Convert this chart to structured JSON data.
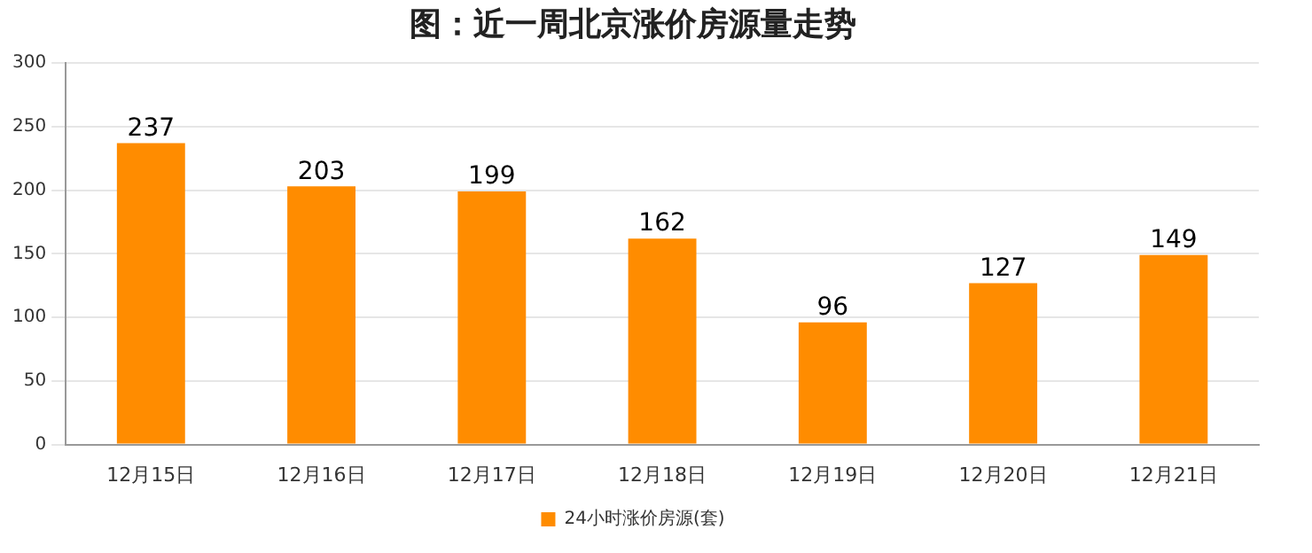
{
  "chart_data": {
    "type": "bar",
    "title": "图：近一周北京涨价房源量走势",
    "categories": [
      "12月15日",
      "12月16日",
      "12月17日",
      "12月18日",
      "12月19日",
      "12月20日",
      "12月21日"
    ],
    "series": [
      {
        "name": "24小时涨价房源(套)",
        "color": "#ff8c00",
        "values": [
          237,
          203,
          199,
          162,
          96,
          127,
          149
        ]
      }
    ],
    "ylim": [
      0,
      300
    ],
    "yticks": [
      0,
      50,
      100,
      150,
      200,
      250,
      300
    ],
    "grid": "y",
    "legend": "bottom",
    "data_labels": true
  }
}
